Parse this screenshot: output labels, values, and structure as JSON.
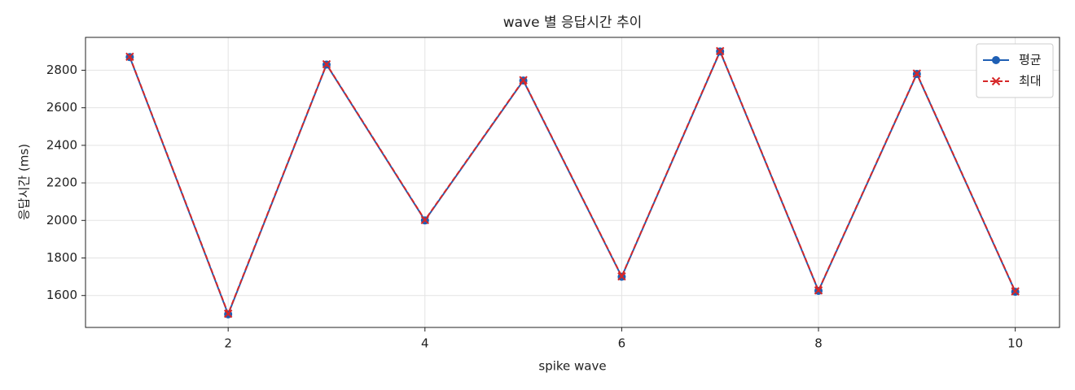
{
  "chart_data": {
    "type": "line",
    "title": "wave 별 응답시간 추이",
    "x_label": "spike wave",
    "y_label": "응답시간 (ms)",
    "x": [
      1,
      2,
      3,
      4,
      5,
      6,
      7,
      8,
      9,
      10
    ],
    "series": [
      {
        "name": "평균",
        "color": "#1f5fb4",
        "marker": "o",
        "linestyle": "solid",
        "values": [
          2870,
          1500,
          2830,
          2000,
          2745,
          1700,
          2900,
          1625,
          2780,
          1620
        ]
      },
      {
        "name": "최대",
        "color": "#d62728",
        "marker": "x",
        "linestyle": "dashed",
        "values": [
          2872,
          1503,
          2832,
          2002,
          2747,
          1702,
          2902,
          1627,
          2782,
          1622
        ]
      }
    ],
    "xlim": [
      0.55,
      10.45
    ],
    "ylim": [
      1430,
      2975
    ],
    "xticks": [
      2,
      4,
      6,
      8,
      10
    ],
    "yticks": [
      1600,
      1800,
      2000,
      2200,
      2400,
      2600,
      2800
    ],
    "grid": true,
    "legend": "upper right"
  }
}
